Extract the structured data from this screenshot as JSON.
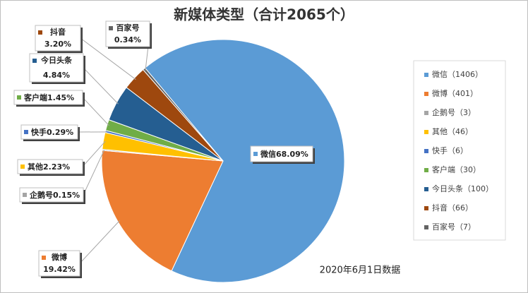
{
  "chart_data": {
    "type": "pie",
    "title": "新媒体类型（合计2065个）",
    "annotation": "2020年6月1日数据",
    "categories": [
      "微信",
      "微博",
      "企鹅号",
      "其他",
      "快手",
      "客户端",
      "今日头条",
      "抖音",
      "百家号"
    ],
    "legend_labels": [
      "微信（1406）",
      "微博（401）",
      "企鹅号（3）",
      "其他（46）",
      "快手（6）",
      "客户端（30）",
      "今日头条（100）",
      "抖音（66）",
      "百家号（7）"
    ],
    "values": [
      68.09,
      19.42,
      0.15,
      2.23,
      0.29,
      1.45,
      4.84,
      3.2,
      0.34
    ],
    "value_labels": [
      "68.09%",
      "19.42%",
      "0.15%",
      "2.23%",
      "0.29%",
      "1.45%",
      "4.84%",
      "3.20%",
      "0.34%"
    ],
    "colors": [
      "#5b9bd5",
      "#ed7d31",
      "#a5a5a5",
      "#ffc000",
      "#4472c4",
      "#70ad47",
      "#255e91",
      "#9e480e",
      "#636363"
    ],
    "legend": "right"
  }
}
